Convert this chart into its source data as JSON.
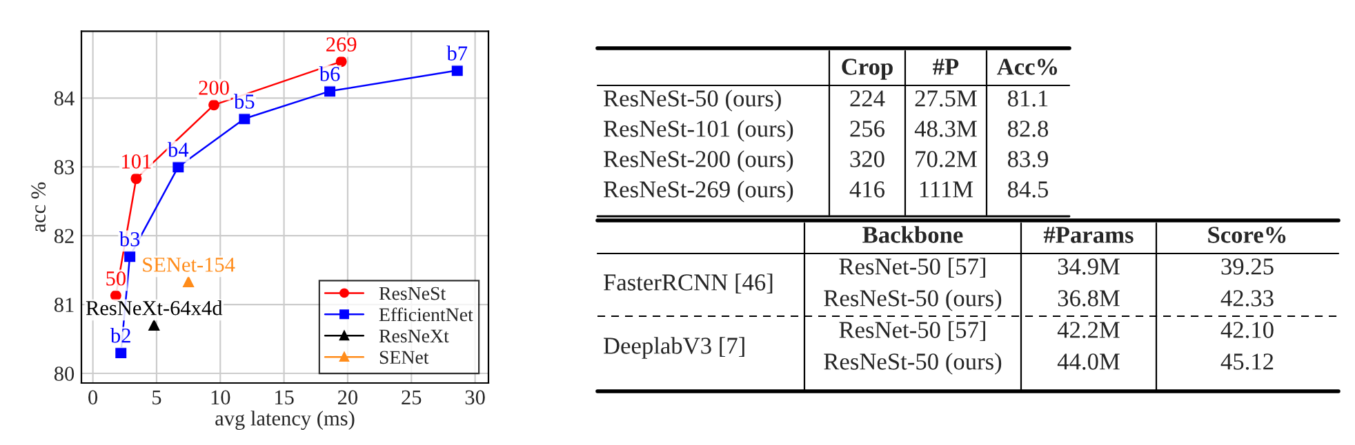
{
  "chart_data": [
    {
      "type": "line",
      "xlabel": "avg latency (ms)",
      "ylabel": "acc %",
      "xlim": [
        -0.9,
        31.05
      ],
      "ylim": [
        79.86,
        84.97
      ],
      "xticks": [
        0,
        5,
        10,
        15,
        20,
        25,
        30
      ],
      "yticks": [
        80,
        81,
        82,
        83,
        84
      ],
      "grid": true,
      "legend": "bottom right",
      "series": [
        {
          "name": "ResNeSt",
          "color": "#ff0000",
          "marker": "circle",
          "x": [
            1.8,
            3.4,
            9.5,
            19.5
          ],
          "values": [
            81.13,
            82.83,
            83.9,
            84.53
          ]
        },
        {
          "name": "EfficientNet",
          "color": "#0000ff",
          "marker": "square",
          "x": [
            2.2,
            2.9,
            6.7,
            11.9,
            18.6,
            28.6
          ],
          "values": [
            80.3,
            81.7,
            83.0,
            83.7,
            84.1,
            84.4
          ]
        },
        {
          "name": "ResNeXt",
          "color": "#000000",
          "marker": "triangle",
          "x": [
            4.8
          ],
          "values": [
            80.7
          ]
        },
        {
          "name": "SENet",
          "color": "#ff8c1a",
          "marker": "triangle",
          "x": [
            7.5
          ],
          "values": [
            81.33
          ]
        }
      ],
      "annotations": [
        {
          "text": "50",
          "x": 1.8,
          "y": 81.13
        },
        {
          "text": "101",
          "x": 3.4,
          "y": 82.83
        },
        {
          "text": "200",
          "x": 9.5,
          "y": 83.9
        },
        {
          "text": "269",
          "x": 19.5,
          "y": 84.53
        },
        {
          "text": "b2",
          "x": 2.2,
          "y": 80.3
        },
        {
          "text": "b3",
          "x": 2.9,
          "y": 81.7
        },
        {
          "text": "b4",
          "x": 6.7,
          "y": 83.0
        },
        {
          "text": "b5",
          "x": 11.9,
          "y": 83.7
        },
        {
          "text": "b6",
          "x": 18.6,
          "y": 84.1
        },
        {
          "text": "b7",
          "x": 28.6,
          "y": 84.4
        },
        {
          "text": "ResNeXt-64x4d",
          "x": 4.8,
          "y": 80.7
        },
        {
          "text": "SENet-154",
          "x": 7.5,
          "y": 81.33
        }
      ]
    },
    {
      "type": "other",
      "categories": [
        null,
        "Crop",
        "#P",
        "Acc%"
      ],
      "cell_labels": [
        [
          "ResNeSt-50 (ours)",
          "224",
          "27.5M",
          "81.1"
        ],
        [
          "ResNeSt-101 (ours)",
          "256",
          "48.3M",
          "82.8"
        ],
        [
          "ResNeSt-200 (ours)",
          "320",
          "70.2M",
          "83.9"
        ],
        [
          "ResNeSt-269 (ours)",
          "416",
          "111M",
          "84.5"
        ]
      ]
    },
    {
      "type": "other",
      "categories": [
        null,
        "Backbone",
        "#Params",
        "Score%"
      ],
      "cell_labels": [
        [
          "FasterRCNN [46]",
          "ResNet-50 [57]",
          "34.9M",
          "39.25"
        ],
        [
          null,
          "ResNeSt-50 (ours)",
          "36.8M",
          "42.33"
        ],
        [
          "DeeplabV3 [7]",
          "ResNet-50 [57]",
          "42.2M",
          "42.10"
        ],
        [
          null,
          "ResNeSt-50 (ours)",
          "44.0M",
          "45.12"
        ]
      ]
    }
  ]
}
